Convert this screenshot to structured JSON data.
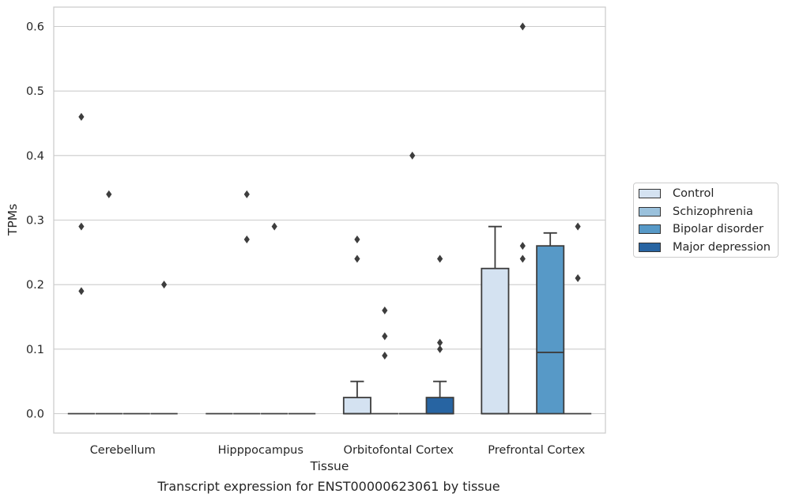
{
  "caption": "Transcript expression for ENST00000623061 by tissue",
  "chart_data": {
    "type": "box",
    "title": "",
    "xlabel": "Tissue",
    "ylabel": "TPMs",
    "categories": [
      "Cerebellum",
      "Hipppocampus",
      "Orbitofontal Cortex",
      "Prefrontal Cortex"
    ],
    "ylim": [
      -0.03,
      0.63
    ],
    "yticks": [
      0.0,
      0.1,
      0.2,
      0.3,
      0.4,
      0.5,
      0.6
    ],
    "ytick_labels": [
      "0.0",
      "0.1",
      "0.2",
      "0.3",
      "0.4",
      "0.5",
      "0.6"
    ],
    "grid": true,
    "legend_position": "right",
    "series": [
      {
        "name": "Control",
        "color": "#d4e2f1",
        "boxes": [
          {
            "min": 0,
            "q1": 0,
            "median": 0,
            "q3": 0,
            "max": 0,
            "outliers": [
              0.46,
              0.29,
              0.19
            ]
          },
          {
            "min": 0,
            "q1": 0,
            "median": 0,
            "q3": 0,
            "max": 0,
            "outliers": []
          },
          {
            "min": 0,
            "q1": 0,
            "median": 0,
            "q3": 0.025,
            "max": 0.05,
            "outliers": [
              0.27,
              0.24
            ]
          },
          {
            "min": 0,
            "q1": 0,
            "median": 0,
            "q3": 0.225,
            "max": 0.29,
            "outliers": []
          }
        ]
      },
      {
        "name": "Schizophrenia",
        "color": "#9ac1dc",
        "boxes": [
          {
            "min": 0,
            "q1": 0,
            "median": 0,
            "q3": 0,
            "max": 0,
            "outliers": [
              0.34
            ]
          },
          {
            "min": 0,
            "q1": 0,
            "median": 0,
            "q3": 0,
            "max": 0,
            "outliers": [
              0.34,
              0.27
            ]
          },
          {
            "min": 0,
            "q1": 0,
            "median": 0,
            "q3": 0,
            "max": 0,
            "outliers": [
              0.16,
              0.12,
              0.09
            ]
          },
          {
            "min": 0,
            "q1": 0,
            "median": 0,
            "q3": 0,
            "max": 0,
            "outliers": [
              0.6,
              0.26,
              0.24
            ]
          }
        ]
      },
      {
        "name": "Bipolar disorder",
        "color": "#5799c7",
        "boxes": [
          {
            "min": 0,
            "q1": 0,
            "median": 0,
            "q3": 0,
            "max": 0,
            "outliers": []
          },
          {
            "min": 0,
            "q1": 0,
            "median": 0,
            "q3": 0,
            "max": 0,
            "outliers": [
              0.29
            ]
          },
          {
            "min": 0,
            "q1": 0,
            "median": 0,
            "q3": 0,
            "max": 0,
            "outliers": [
              0.4
            ]
          },
          {
            "min": 0,
            "q1": 0,
            "median": 0.095,
            "q3": 0.26,
            "max": 0.28,
            "outliers": []
          }
        ]
      },
      {
        "name": "Major depression",
        "color": "#2764a2",
        "boxes": [
          {
            "min": 0,
            "q1": 0,
            "median": 0,
            "q3": 0,
            "max": 0,
            "outliers": [
              0.2
            ]
          },
          {
            "min": 0,
            "q1": 0,
            "median": 0,
            "q3": 0,
            "max": 0,
            "outliers": []
          },
          {
            "min": 0,
            "q1": 0,
            "median": 0,
            "q3": 0.025,
            "max": 0.05,
            "outliers": [
              0.24,
              0.11,
              0.1
            ]
          },
          {
            "min": 0,
            "q1": 0,
            "median": 0,
            "q3": 0,
            "max": 0,
            "outliers": [
              0.29,
              0.21
            ]
          }
        ]
      }
    ]
  }
}
